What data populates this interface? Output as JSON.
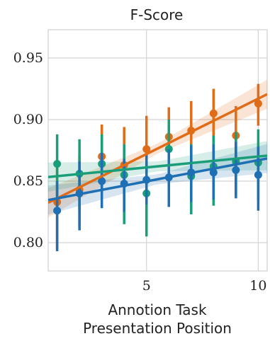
{
  "chart_data": {
    "type": "scatter",
    "title": "F-Score",
    "xlabel_lines": [
      "Annotion Task",
      "Presentation Position"
    ],
    "ylabel": "",
    "xlim": [
      0.6,
      10.4
    ],
    "ylim": [
      0.777,
      0.973
    ],
    "xticks": [
      5,
      10
    ],
    "xtick_labels": [
      "5",
      "10"
    ],
    "yticks": [
      0.8,
      0.85,
      0.9,
      0.95
    ],
    "ytick_labels": [
      "0.80",
      "0.85",
      "0.90",
      "0.95"
    ],
    "grid": true,
    "legend": "none",
    "series": [
      {
        "color": "#E06C18",
        "x": [
          1,
          2,
          3,
          4,
          5,
          6,
          7,
          8,
          9,
          10
        ],
        "y": [
          0.833,
          0.843,
          0.87,
          0.863,
          0.876,
          0.886,
          0.891,
          0.905,
          0.887,
          0.913
        ],
        "err_low": [
          0.795,
          0.813,
          0.845,
          0.833,
          0.847,
          0.862,
          0.864,
          0.882,
          0.86,
          0.895
        ],
        "err_high": [
          0.862,
          0.87,
          0.896,
          0.894,
          0.903,
          0.91,
          0.915,
          0.925,
          0.911,
          0.929
        ],
        "fit": [
          0.836,
          0.917
        ]
      },
      {
        "color": "#1A9E7A",
        "x": [
          1,
          2,
          3,
          4,
          5,
          6,
          7,
          8,
          9,
          10
        ],
        "y": [
          0.864,
          0.856,
          0.864,
          0.855,
          0.84,
          0.876,
          0.854,
          0.862,
          0.866,
          0.865
        ],
        "err_low": [
          0.835,
          0.826,
          0.84,
          0.815,
          0.805,
          0.852,
          0.823,
          0.83,
          0.838,
          0.835
        ],
        "err_high": [
          0.888,
          0.884,
          0.888,
          0.88,
          0.868,
          0.9,
          0.88,
          0.887,
          0.89,
          0.892
        ],
        "fit": [
          0.854,
          0.87
        ]
      },
      {
        "color": "#1F6FB4",
        "x": [
          1,
          2,
          3,
          4,
          5,
          6,
          7,
          8,
          9,
          10
        ],
        "y": [
          0.826,
          0.84,
          0.85,
          0.848,
          0.851,
          0.853,
          0.857,
          0.857,
          0.859,
          0.855
        ],
        "err_low": [
          0.793,
          0.81,
          0.828,
          0.825,
          0.831,
          0.829,
          0.833,
          0.835,
          0.836,
          0.826
        ],
        "err_high": [
          0.85,
          0.866,
          0.873,
          0.868,
          0.872,
          0.876,
          0.879,
          0.88,
          0.882,
          0.878
        ],
        "fit": [
          0.836,
          0.867
        ]
      }
    ]
  }
}
